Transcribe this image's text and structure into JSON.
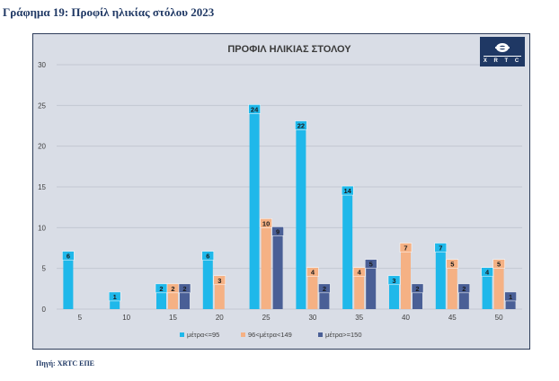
{
  "caption": "Γράφημα 19: Προφίλ ηλικίας στόλου 2023",
  "source": "Πηγή: XRTC ΕΠΕ",
  "logo": {
    "text": "X R T C",
    "icon": "ship-wheel-icon"
  },
  "colors": {
    "s1": "#1fb8ea",
    "s2": "#f5b184",
    "s3": "#4a5f96",
    "background": "#d9dde6",
    "grid": "#c2c7d2",
    "label_bg_s1": "#1b75bb",
    "label_bg_s2": "#d07d3c",
    "label_bg_s3": "#2f3f6e"
  },
  "chart_data": {
    "type": "bar",
    "title": "ΠΡΟΦΙΛ ΗΛΙΚΙΑΣ ΣΤΟΛΟΥ",
    "xlabel": "",
    "ylabel": "",
    "categories": [
      "5",
      "10",
      "15",
      "20",
      "25",
      "30",
      "35",
      "40",
      "45",
      "50"
    ],
    "series": [
      {
        "name": "μέτρα<=95",
        "values": [
          6,
          1,
          2,
          6,
          24,
          22,
          14,
          3,
          7,
          4
        ]
      },
      {
        "name": "96<μέτρα<149",
        "values": [
          0,
          0,
          2,
          3,
          10,
          4,
          4,
          7,
          5,
          5
        ]
      },
      {
        "name": "μέτρα>=150",
        "values": [
          0,
          0,
          2,
          0,
          9,
          2,
          5,
          2,
          2,
          1
        ]
      }
    ],
    "ylim": [
      0,
      30
    ],
    "yticks": [
      "0",
      "5",
      "10",
      "15",
      "20",
      "25",
      "30"
    ],
    "grid": true,
    "legend": "bottom"
  }
}
